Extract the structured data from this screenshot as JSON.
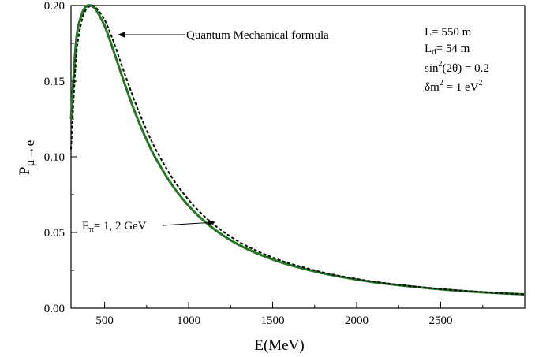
{
  "chart_data": {
    "type": "line",
    "title": "",
    "xlabel": "E(MeV)",
    "ylabel": {
      "main": "P",
      "sub": "μ→e"
    },
    "xlim": [
      300,
      3000
    ],
    "ylim": [
      0.0,
      0.2
    ],
    "x_ticks": [
      500,
      1000,
      1500,
      2000,
      2500
    ],
    "x_tick_labels": [
      "500",
      "1000",
      "1500",
      "2000",
      "2500"
    ],
    "y_ticks": [
      0.0,
      0.05,
      0.1,
      0.15,
      0.2
    ],
    "y_tick_labels": [
      "0.00",
      "0.05",
      "0.10",
      "0.15",
      "0.20"
    ],
    "grid": false,
    "series": [
      {
        "style": "dashed",
        "color": "#000000",
        "x": [
          300,
          330,
          360,
          390,
          420,
          430,
          450,
          500,
          550,
          600,
          650,
          700,
          750,
          800,
          900,
          1000,
          1100,
          1200,
          1300,
          1400,
          1500,
          1600,
          1800,
          2000,
          2200,
          2400,
          2600,
          2800,
          3000
        ],
        "y": [
          0.105,
          0.165,
          0.188,
          0.1975,
          0.1998,
          0.2,
          0.1985,
          0.1905,
          0.177,
          0.161,
          0.1455,
          0.1308,
          0.1176,
          0.1058,
          0.0865,
          0.0716,
          0.06,
          0.051,
          0.0438,
          0.0381,
          0.0335,
          0.0296,
          0.0236,
          0.0193,
          0.0161,
          0.0137,
          0.0118,
          0.0103,
          0.0091
        ]
      },
      {
        "style": "solid",
        "color": "#1f7a1f",
        "x": [
          300,
          330,
          360,
          390,
          420,
          430,
          450,
          500,
          550,
          600,
          650,
          700,
          750,
          800,
          900,
          1000,
          1100,
          1200,
          1300,
          1400,
          1500,
          1600,
          1800,
          2000,
          2200,
          2400,
          2600,
          2800,
          3000
        ],
        "y": [
          0.125,
          0.176,
          0.193,
          0.1995,
          0.2,
          0.1992,
          0.197,
          0.1865,
          0.171,
          0.1545,
          0.1386,
          0.124,
          0.1112,
          0.0998,
          0.0816,
          0.0676,
          0.0568,
          0.0484,
          0.0418,
          0.0365,
          0.0322,
          0.0286,
          0.023,
          0.0189,
          0.0158,
          0.0135,
          0.0116,
          0.0102,
          0.0091
        ]
      }
    ],
    "annotations": {
      "qm": {
        "text": "Quantum Mechanical formula",
        "x": 500,
        "y": 0.1785
      },
      "epi": {
        "main": "E",
        "sub": "π",
        "text": "= 1, 2 GeV",
        "x": 1170,
        "y": 0.0532
      }
    },
    "params": [
      {
        "main": "L= 550 m"
      },
      {
        "main": "L",
        "sub": "d",
        "rest": "= 54 m"
      },
      {
        "main": "sin",
        "sup": "2",
        "rest": "(2θ) = 0.2"
      },
      {
        "main": "δm",
        "sup": "2",
        "rest": " = 1 eV",
        "sup2": "2"
      }
    ]
  }
}
